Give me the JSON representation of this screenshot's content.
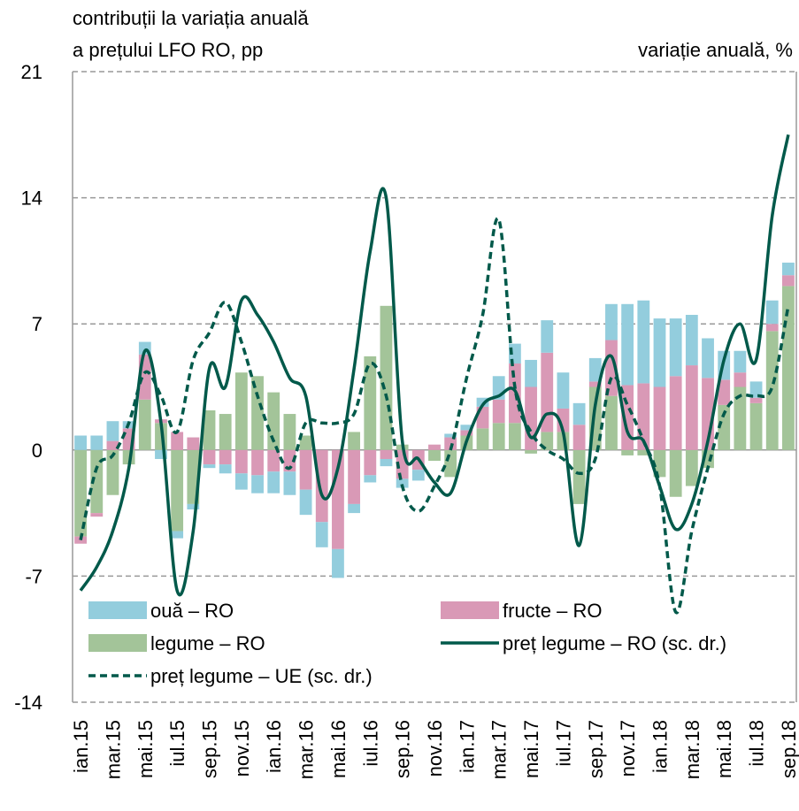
{
  "chart_data": {
    "type": "bar-line",
    "title_lines": [
      "contribuții la variația anuală",
      "a prețului LFO RO, pp"
    ],
    "y2_label": "variație anuală, %",
    "categories": [
      "ian.15",
      null,
      "mar.15",
      null,
      "mai.15",
      null,
      "iul.15",
      null,
      "sep.15",
      null,
      "nov.15",
      null,
      "ian.16",
      null,
      "mar.16",
      null,
      "mai.16",
      null,
      "iul.16",
      null,
      "sep.16",
      null,
      "nov.16",
      null,
      "ian.17",
      null,
      "mar.17",
      null,
      "mai.17",
      null,
      "iul.17",
      null,
      "sep.17",
      null,
      "nov.17",
      null,
      "ian.18",
      null,
      "mar.18",
      null,
      "mai.18",
      null,
      "iul.18",
      null,
      "sep.18"
    ],
    "ylim": [
      -14,
      21
    ],
    "yticks": [
      -14,
      -7,
      0,
      7,
      14,
      21
    ],
    "y2lim": [
      -14,
      21
    ],
    "grid": true,
    "series": [
      {
        "name": "ouă – RO",
        "kind": "bar",
        "color": "#93cddd",
        "values": [
          0.8,
          0.8,
          1.1,
          0.4,
          0.7,
          -0.5,
          -0.4,
          -0.3,
          -0.2,
          -0.5,
          -0.9,
          -1.0,
          -1.2,
          -1.3,
          -1.4,
          -1.4,
          -1.6,
          -0.5,
          -0.4,
          -0.4,
          -0.5,
          -0.6,
          0.0,
          0.2,
          0.3,
          0.5,
          1.3,
          1.1,
          1.5,
          1.8,
          2.0,
          1.2,
          1.3,
          2.0,
          4.5,
          4.6,
          3.8,
          3.2,
          2.8,
          2.2,
          1.6,
          1.2,
          0.9,
          1.3,
          0.7
        ]
      },
      {
        "name": "fructe – RO",
        "kind": "bar",
        "color": "#d999b6",
        "values": [
          -0.4,
          -0.2,
          0.5,
          1.2,
          2.5,
          0.2,
          1.0,
          0.7,
          -0.8,
          -0.8,
          -1.3,
          -1.4,
          -1.2,
          -1.2,
          -2.2,
          -4.0,
          -5.5,
          -3.0,
          -1.4,
          -0.5,
          -1.6,
          -1.1,
          0.3,
          0.7,
          0.3,
          1.2,
          1.3,
          3.3,
          3.5,
          4.4,
          1.3,
          1.4,
          0.3,
          3.1,
          3.6,
          3.7,
          3.5,
          4.1,
          4.7,
          4.0,
          1.4,
          0.8,
          0.3,
          0.4,
          0.6
        ]
      },
      {
        "name": "legume – RO",
        "kind": "bar",
        "color": "#a3c499",
        "values": [
          -4.8,
          -3.5,
          -2.5,
          -0.8,
          2.8,
          1.5,
          -4.5,
          -3.0,
          2.2,
          2.0,
          4.3,
          4.1,
          3.2,
          2.0,
          0.8,
          0.0,
          0.0,
          1.0,
          5.2,
          8.0,
          0.3,
          0.0,
          -0.6,
          -1.5,
          0.8,
          1.2,
          1.5,
          1.5,
          -0.2,
          1.0,
          1.0,
          -3.0,
          3.5,
          3.0,
          -0.3,
          -0.3,
          -1.5,
          -2.6,
          -2.0,
          -1.0,
          2.5,
          3.5,
          2.6,
          6.6,
          9.1
        ]
      },
      {
        "name": "preț legume – RO (sc. dr.)",
        "kind": "line",
        "axis": "y2",
        "color": "#00594a",
        "dash": false,
        "values": [
          -7.8,
          -6.5,
          -4.5,
          -1.0,
          5.5,
          1.5,
          -7.8,
          -4.5,
          4.5,
          3.5,
          8.3,
          7.5,
          6.0,
          4.0,
          3.0,
          -2.5,
          -1.0,
          4.5,
          11.0,
          14.0,
          0.5,
          -0.5,
          -1.8,
          -2.4,
          0.5,
          2.5,
          3.0,
          3.3,
          0.7,
          2.0,
          1.0,
          -5.3,
          2.5,
          5.2,
          1.0,
          0.5,
          -2.0,
          -4.4,
          -3.0,
          0.5,
          5.0,
          7.0,
          5.0,
          13.0,
          17.5
        ]
      },
      {
        "name": "preț legume – UE (sc. dr.)",
        "kind": "line",
        "axis": "y2",
        "color": "#00594a",
        "dash": true,
        "values": [
          -5.0,
          -1.0,
          -0.3,
          1.5,
          4.3,
          3.0,
          1.0,
          5.0,
          6.5,
          8.2,
          6.0,
          3.0,
          0.5,
          -1.0,
          1.5,
          1.5,
          1.5,
          2.0,
          4.8,
          3.0,
          -2.0,
          -3.4,
          -2.0,
          0.0,
          4.0,
          7.5,
          12.8,
          3.5,
          1.0,
          0.0,
          -0.5,
          -1.3,
          -0.5,
          4.0,
          2.5,
          0.5,
          -2.0,
          -9.0,
          -4.5,
          -1.0,
          2.0,
          3.0,
          3.0,
          3.5,
          8.0
        ]
      }
    ]
  }
}
